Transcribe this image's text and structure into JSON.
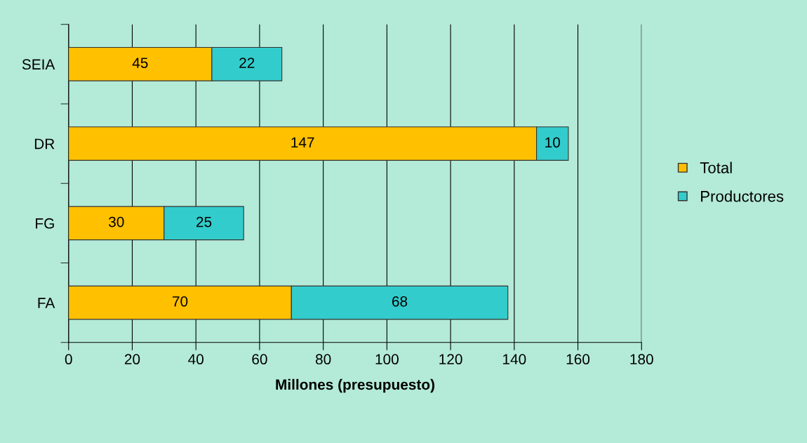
{
  "chart_data": {
    "type": "bar",
    "orientation": "horizontal",
    "stacked": true,
    "xlabel": "Millones (presupuesto)",
    "categories": [
      "SEIA",
      "DR",
      "FG",
      "FA"
    ],
    "series": [
      {
        "name": "Total",
        "color": "#ffc000",
        "values": [
          45,
          147,
          30,
          70
        ]
      },
      {
        "name": "Productores",
        "color": "#33cccc",
        "values": [
          22,
          10,
          25,
          68
        ]
      }
    ],
    "xlim": [
      0,
      180
    ],
    "xticks": [
      0,
      20,
      40,
      60,
      80,
      100,
      120,
      140,
      160,
      180
    ],
    "grid": "x",
    "legend": "right",
    "data_labels": true
  }
}
